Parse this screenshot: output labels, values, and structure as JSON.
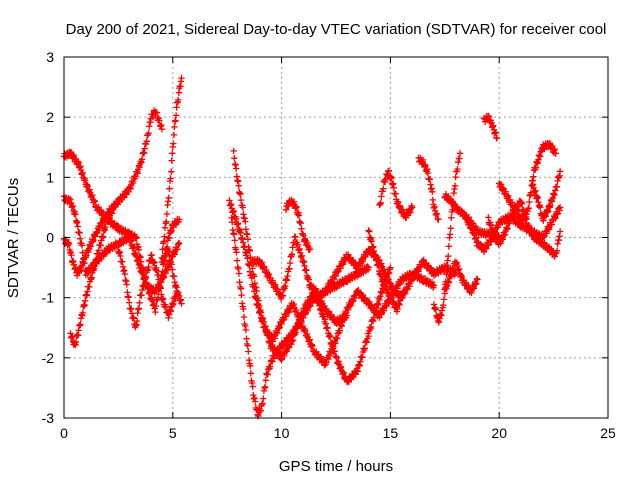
{
  "chart_data": {
    "type": "scatter",
    "title": "Day 200 of 2021, Sidereal Day-to-day VTEC variation (SDTVAR) for receiver cool",
    "xlabel": "GPS time / hours",
    "ylabel": "SDTVAR / TECUs",
    "xlim": [
      0,
      25
    ],
    "ylim": [
      -3,
      3
    ],
    "xticks": [
      "0",
      "5",
      "10",
      "15",
      "20",
      "25"
    ],
    "yticks": [
      "-3",
      "-2",
      "-1",
      "0",
      "1",
      "2",
      "3"
    ],
    "grid": true,
    "marker": "plus",
    "color": "#ff0000",
    "tracks": [
      {
        "x": [
          0.0,
          0.3,
          0.5,
          0.7,
          1.0,
          1.5,
          2.0,
          2.5,
          3.0,
          3.3,
          3.6,
          3.9,
          4.2,
          4.5,
          4.8,
          5.0,
          5.3
        ],
        "y": [
          1.35,
          1.4,
          1.3,
          1.2,
          0.9,
          0.5,
          0.3,
          0.15,
          0.05,
          0.0,
          -0.5,
          -0.9,
          -1.2,
          -0.6,
          0.0,
          0.2,
          0.3
        ]
      },
      {
        "x": [
          0.0,
          0.2,
          0.4,
          0.6,
          0.8,
          1.0,
          1.5,
          2.0,
          2.5,
          3.0,
          3.5,
          3.8,
          4.0,
          4.2,
          4.5
        ],
        "y": [
          -0.05,
          -0.1,
          -0.4,
          -0.6,
          -0.5,
          -0.3,
          0.1,
          0.4,
          0.6,
          0.8,
          1.2,
          1.6,
          2.0,
          2.1,
          1.8
        ]
      },
      {
        "x": [
          0.0,
          0.3,
          0.5,
          0.8,
          1.0,
          1.5,
          2.0,
          2.5,
          3.0,
          3.5,
          3.8,
          4.2,
          4.5,
          5.0,
          5.3
        ],
        "y": [
          0.65,
          0.6,
          0.4,
          -0.1,
          -0.6,
          -0.4,
          -0.2,
          -0.1,
          0.0,
          -0.5,
          -0.8,
          -0.9,
          -0.7,
          -0.3,
          -0.1
        ]
      },
      {
        "x": [
          0.3,
          0.5,
          0.7,
          1.0,
          1.3,
          1.6,
          2.0,
          2.3
        ],
        "y": [
          -1.6,
          -1.8,
          -1.5,
          -1.0,
          -0.6,
          -0.2,
          0.3,
          0.5
        ]
      },
      {
        "x": [
          2.5,
          2.8,
          3.0,
          3.3,
          3.5,
          3.8,
          4.0,
          4.3,
          4.5,
          4.8,
          5.0,
          5.2
        ],
        "y": [
          -0.2,
          -0.6,
          -1.1,
          -1.5,
          -1.0,
          -0.6,
          -0.3,
          -0.6,
          -1.0,
          -1.3,
          -1.1,
          -0.9
        ]
      },
      {
        "x": [
          4.5,
          4.7,
          4.9,
          5.0,
          5.1,
          5.2,
          5.3,
          5.4
        ],
        "y": [
          -0.3,
          0.3,
          1.0,
          1.5,
          1.9,
          2.2,
          2.45,
          2.65
        ]
      },
      {
        "x": [
          4.5,
          4.8,
          5.0,
          5.2,
          5.4
        ],
        "y": [
          -0.4,
          -0.2,
          -0.6,
          -0.9,
          -1.1
        ]
      },
      {
        "x": [
          7.7,
          7.9,
          8.1,
          8.3,
          8.5,
          8.7,
          8.9,
          9.1,
          9.3,
          9.6,
          10.0,
          10.5,
          11.0,
          11.5,
          12.0,
          12.5,
          13.0,
          13.5,
          14.0
        ],
        "y": [
          0.3,
          -0.2,
          -0.8,
          -1.4,
          -2.0,
          -2.6,
          -2.95,
          -2.8,
          -2.3,
          -2.0,
          -1.8,
          -1.6,
          -1.3,
          -1.0,
          -0.9,
          -0.8,
          -0.7,
          -0.6,
          -0.5
        ]
      },
      {
        "x": [
          7.8,
          8.0,
          8.3,
          8.6,
          9.0,
          9.5,
          10.0,
          10.5,
          11.0,
          11.5,
          12.0,
          12.5,
          13.0,
          13.5,
          14.0,
          14.5,
          15.0
        ],
        "y": [
          1.4,
          0.9,
          0.3,
          -0.4,
          -1.2,
          -1.8,
          -2.0,
          -1.7,
          -1.2,
          -0.9,
          -1.4,
          -2.0,
          -2.4,
          -2.2,
          -1.6,
          -1.0,
          -0.5
        ]
      },
      {
        "x": [
          7.6,
          8.0,
          8.4,
          8.8,
          9.2,
          9.6,
          10.0,
          10.5,
          11.0,
          11.5,
          12.0,
          12.5,
          13.0,
          13.5,
          14.0,
          14.5,
          15.0,
          15.5,
          16.0,
          16.5,
          17.0
        ],
        "y": [
          0.6,
          0.2,
          -0.3,
          -1.0,
          -1.5,
          -1.7,
          -1.4,
          -1.1,
          -1.5,
          -1.9,
          -2.1,
          -1.7,
          -1.2,
          -0.9,
          -1.1,
          -1.3,
          -1.0,
          -0.7,
          -0.6,
          -0.7,
          -0.8
        ]
      },
      {
        "x": [
          8.6,
          9.0,
          9.5,
          10.0,
          10.3,
          10.6,
          11.0,
          11.3,
          11.6,
          12.0,
          12.5,
          13.0
        ],
        "y": [
          -0.4,
          -0.4,
          -0.7,
          -1.0,
          -0.6,
          0.0,
          -0.4,
          -0.8,
          -0.9,
          -1.2,
          -1.4,
          -1.3
        ]
      },
      {
        "x": [
          10.2,
          10.4,
          10.6,
          10.8,
          11.0,
          11.3
        ],
        "y": [
          0.5,
          0.6,
          0.55,
          0.35,
          0.0,
          -0.2
        ]
      },
      {
        "x": [
          12.0,
          12.5,
          13.0,
          13.5,
          14.0,
          14.5,
          15.0,
          15.5,
          16.0,
          16.5,
          17.0,
          17.5,
          18.0
        ],
        "y": [
          -0.9,
          -0.6,
          -0.3,
          -0.5,
          -0.2,
          -0.4,
          -0.8,
          -1.0,
          -0.7,
          -0.4,
          -0.6,
          -0.5,
          -0.6
        ]
      },
      {
        "x": [
          14.0,
          14.3,
          14.6,
          15.0,
          15.3,
          15.6
        ],
        "y": [
          0.1,
          -0.3,
          -0.7,
          -1.0,
          -1.2,
          -0.9
        ]
      },
      {
        "x": [
          14.5,
          14.7,
          14.9,
          15.1,
          15.3,
          15.5,
          15.7,
          16.0
        ],
        "y": [
          0.5,
          0.9,
          1.1,
          0.9,
          0.6,
          0.45,
          0.35,
          0.5
        ]
      },
      {
        "x": [
          16.3,
          16.5,
          16.7,
          16.9,
          17.0,
          17.2
        ],
        "y": [
          1.3,
          1.25,
          1.1,
          0.8,
          0.5,
          0.3
        ]
      },
      {
        "x": [
          17.0,
          17.2,
          17.4,
          17.6,
          17.8,
          18.0,
          18.2
        ],
        "y": [
          -1.1,
          -1.4,
          -1.2,
          -0.5,
          0.3,
          1.0,
          1.4
        ]
      },
      {
        "x": [
          17.5,
          17.8,
          18.0,
          18.3,
          18.6,
          19.0,
          19.5,
          20.0
        ],
        "y": [
          0.7,
          0.6,
          0.5,
          0.4,
          0.3,
          0.1,
          0.05,
          0.0
        ]
      },
      {
        "x": [
          17.5,
          17.8,
          18.0,
          18.3,
          18.7,
          19.0
        ],
        "y": [
          -0.9,
          -0.6,
          -0.4,
          -0.7,
          -0.9,
          -0.7
        ]
      },
      {
        "x": [
          18.5,
          18.8,
          19.0,
          19.3,
          19.6,
          20.0,
          20.5,
          21.0,
          21.5,
          22.0,
          22.5,
          22.8
        ],
        "y": [
          0.3,
          0.1,
          -0.1,
          -0.2,
          -0.05,
          0.25,
          0.35,
          0.2,
          0.1,
          0.0,
          0.3,
          0.5
        ]
      },
      {
        "x": [
          19.3,
          19.5,
          19.7,
          19.9
        ],
        "y": [
          1.95,
          2.0,
          1.85,
          1.65
        ]
      },
      {
        "x": [
          19.5,
          19.8,
          20.0,
          20.3,
          20.6,
          21.0,
          21.3,
          21.6,
          22.0,
          22.3,
          22.6,
          22.8
        ],
        "y": [
          0.3,
          0.0,
          -0.1,
          0.1,
          0.4,
          0.6,
          0.2,
          0.0,
          -0.1,
          -0.2,
          -0.3,
          0.1
        ]
      },
      {
        "x": [
          20.0,
          20.5,
          21.0,
          21.3,
          21.6,
          22.0,
          22.3,
          22.6
        ],
        "y": [
          0.9,
          0.6,
          0.3,
          0.4,
          1.1,
          1.5,
          1.55,
          1.4
        ]
      },
      {
        "x": [
          21.5,
          21.8,
          22.0,
          22.3,
          22.6,
          22.8
        ],
        "y": [
          0.9,
          0.6,
          0.3,
          0.5,
          0.8,
          1.1
        ]
      }
    ]
  }
}
